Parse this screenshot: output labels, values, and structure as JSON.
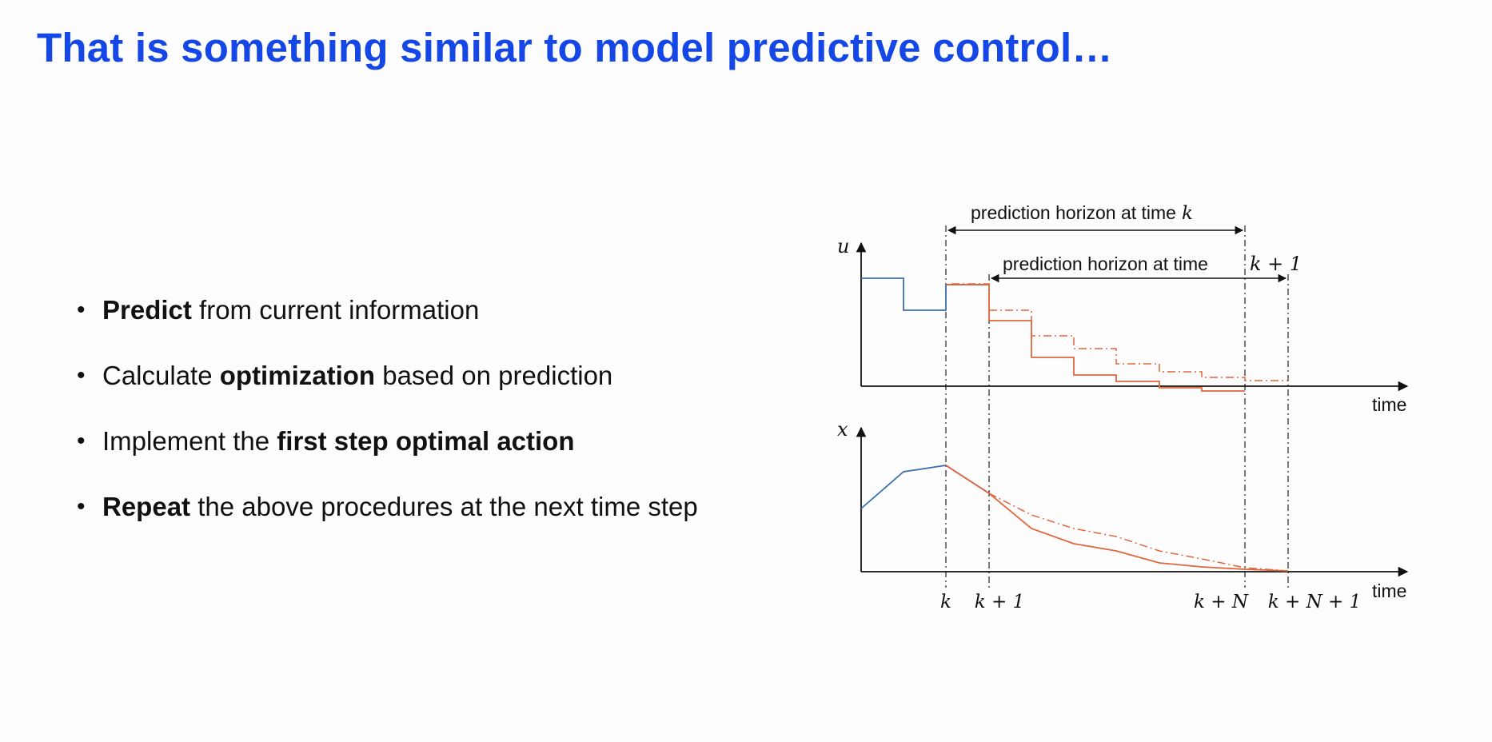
{
  "slide": {
    "title": "That is something similar to model predictive control…",
    "bullets": [
      {
        "bold": "Predict",
        "rest": " from current information",
        "pre": ""
      },
      {
        "pre": "Calculate ",
        "bold": "optimization",
        "rest": " based on prediction"
      },
      {
        "pre": "Implement the ",
        "bold": "first step optimal action",
        "rest": ""
      },
      {
        "pre": "",
        "bold": "Repeat",
        "rest": " the above procedures at the next time step"
      }
    ]
  },
  "diagram": {
    "horizon_k_label": "prediction horizon at time",
    "horizon_k_math": "k",
    "horizon_k1_label": "prediction horizon at time",
    "horizon_k1_math": "k + 1",
    "u_axis_label": "u",
    "x_axis_label": "x",
    "time_label_top": "time",
    "time_label_bottom": "time",
    "ticks": [
      "k",
      "k + 1",
      "k + N",
      "k + N + 1"
    ],
    "colors": {
      "past": "#3b6fb0",
      "prediction": "#e0663d",
      "axis": "#111111"
    }
  }
}
